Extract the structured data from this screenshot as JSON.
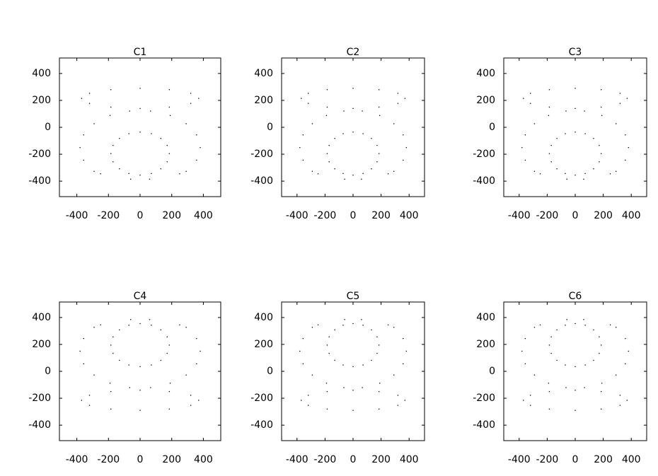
{
  "chart_data": [
    {
      "type": "scatter",
      "title": "C1",
      "color": "#000000",
      "x": [
        370,
        320,
        185,
        0,
        -185,
        -320,
        -370,
        -320,
        -185,
        0,
        185,
        320,
        291,
        357,
        380,
        357,
        291,
        190,
        66,
        -66,
        -190,
        -291,
        -357,
        -380,
        -357,
        -291,
        185,
        171,
        131,
        71,
        0,
        -71,
        -131,
        -171,
        -185,
        -171,
        -131,
        -71,
        0,
        71,
        131,
        171,
        -250,
        250,
        -60,
        60
      ],
      "y": [
        215,
        253,
        280,
        290,
        280,
        253,
        215,
        178,
        150,
        140,
        150,
        178,
        -327,
        -244,
        -150,
        -56,
        27,
        88,
        121,
        121,
        88,
        27,
        -56,
        -150,
        -244,
        -327,
        -195,
        -134,
        -82,
        -47,
        -35,
        -47,
        -82,
        -134,
        -195,
        -256,
        -308,
        -343,
        -355,
        -343,
        -308,
        -256,
        -345,
        -345,
        -385,
        -385
      ],
      "xlim": [
        -510,
        510
      ],
      "ylim": [
        -515,
        515
      ],
      "xticks": [
        -400,
        -200,
        0,
        200,
        400
      ],
      "yticks": [
        -400,
        -200,
        0,
        200,
        400
      ]
    },
    {
      "type": "scatter",
      "title": "C2",
      "color": "#000000",
      "x": [
        370,
        320,
        185,
        0,
        -185,
        -320,
        -370,
        -320,
        -185,
        0,
        185,
        320,
        291,
        357,
        380,
        357,
        291,
        190,
        66,
        -66,
        -190,
        -291,
        -357,
        -380,
        -357,
        -291,
        185,
        171,
        131,
        71,
        0,
        -71,
        -131,
        -171,
        -185,
        -171,
        -131,
        -71,
        0,
        71,
        131,
        171,
        -250,
        250,
        -60,
        60
      ],
      "y": [
        215,
        253,
        280,
        290,
        280,
        253,
        215,
        178,
        150,
        140,
        150,
        178,
        -327,
        -244,
        -150,
        -56,
        27,
        88,
        121,
        121,
        88,
        27,
        -56,
        -150,
        -244,
        -327,
        -195,
        -134,
        -82,
        -47,
        -35,
        -47,
        -82,
        -134,
        -195,
        -256,
        -308,
        -343,
        -355,
        -343,
        -308,
        -256,
        -345,
        -345,
        -385,
        -385
      ],
      "xlim": [
        -510,
        510
      ],
      "ylim": [
        -515,
        515
      ],
      "xticks": [
        -400,
        -200,
        0,
        200,
        400
      ],
      "yticks": [
        -400,
        -200,
        0,
        200,
        400
      ]
    },
    {
      "type": "scatter",
      "title": "C3",
      "color": "#000000",
      "x": [
        370,
        320,
        185,
        0,
        -185,
        -320,
        -370,
        -320,
        -185,
        0,
        185,
        320,
        291,
        357,
        380,
        357,
        291,
        190,
        66,
        -66,
        -190,
        -291,
        -357,
        -380,
        -357,
        -291,
        185,
        171,
        131,
        71,
        0,
        -71,
        -131,
        -171,
        -185,
        -171,
        -131,
        -71,
        0,
        71,
        131,
        171,
        -250,
        250,
        -60,
        60
      ],
      "y": [
        215,
        253,
        280,
        290,
        280,
        253,
        215,
        178,
        150,
        140,
        150,
        178,
        -327,
        -244,
        -150,
        -56,
        27,
        88,
        121,
        121,
        88,
        27,
        -56,
        -150,
        -244,
        -327,
        -195,
        -134,
        -82,
        -47,
        -35,
        -47,
        -82,
        -134,
        -195,
        -256,
        -308,
        -343,
        -355,
        -343,
        -308,
        -256,
        -345,
        -345,
        -385,
        -385
      ],
      "xlim": [
        -510,
        510
      ],
      "ylim": [
        -515,
        515
      ],
      "xticks": [
        -400,
        -200,
        0,
        200,
        400
      ],
      "yticks": [
        -400,
        -200,
        0,
        200,
        400
      ]
    },
    {
      "type": "scatter",
      "title": "C4",
      "color": "#000000",
      "x": [
        370,
        320,
        185,
        0,
        -185,
        -320,
        -370,
        -320,
        -185,
        0,
        185,
        320,
        291,
        357,
        380,
        357,
        291,
        190,
        66,
        -66,
        -190,
        -291,
        -357,
        -380,
        -357,
        -291,
        185,
        171,
        131,
        71,
        0,
        -71,
        -131,
        -171,
        -185,
        -171,
        -131,
        -71,
        0,
        71,
        131,
        171,
        -250,
        250,
        -60,
        60
      ],
      "y": [
        -215,
        -253,
        -280,
        -290,
        -280,
        -253,
        -215,
        -178,
        -150,
        -140,
        -150,
        -178,
        327,
        244,
        150,
        56,
        -27,
        -88,
        -121,
        -121,
        -88,
        -27,
        56,
        150,
        244,
        327,
        195,
        134,
        82,
        47,
        35,
        47,
        82,
        134,
        195,
        256,
        308,
        343,
        355,
        343,
        308,
        256,
        345,
        345,
        385,
        385
      ],
      "xlim": [
        -510,
        510
      ],
      "ylim": [
        -515,
        515
      ],
      "xticks": [
        -400,
        -200,
        0,
        200,
        400
      ],
      "yticks": [
        -400,
        -200,
        0,
        200,
        400
      ]
    },
    {
      "type": "scatter",
      "title": "C5",
      "color": "#000000",
      "x": [
        370,
        320,
        185,
        0,
        -185,
        -320,
        -370,
        -320,
        -185,
        0,
        185,
        320,
        291,
        357,
        380,
        357,
        291,
        190,
        66,
        -66,
        -190,
        -291,
        -357,
        -380,
        -357,
        -291,
        185,
        171,
        131,
        71,
        0,
        -71,
        -131,
        -171,
        -185,
        -171,
        -131,
        -71,
        0,
        71,
        131,
        171,
        -250,
        250,
        -60,
        60
      ],
      "y": [
        -215,
        -253,
        -280,
        -290,
        -280,
        -253,
        -215,
        -178,
        -150,
        -140,
        -150,
        -178,
        327,
        244,
        150,
        56,
        -27,
        -88,
        -121,
        -121,
        -88,
        -27,
        56,
        150,
        244,
        327,
        195,
        134,
        82,
        47,
        35,
        47,
        82,
        134,
        195,
        256,
        308,
        343,
        355,
        343,
        308,
        256,
        345,
        345,
        385,
        385
      ],
      "xlim": [
        -510,
        510
      ],
      "ylim": [
        -515,
        515
      ],
      "xticks": [
        -400,
        -200,
        0,
        200,
        400
      ],
      "yticks": [
        -400,
        -200,
        0,
        200,
        400
      ]
    },
    {
      "type": "scatter",
      "title": "C6",
      "color": "#000000",
      "x": [
        370,
        320,
        185,
        0,
        -185,
        -320,
        -370,
        -320,
        -185,
        0,
        185,
        320,
        291,
        357,
        380,
        357,
        291,
        190,
        66,
        -66,
        -190,
        -291,
        -357,
        -380,
        -357,
        -291,
        185,
        171,
        131,
        71,
        0,
        -71,
        -131,
        -171,
        -185,
        -171,
        -131,
        -71,
        0,
        71,
        131,
        171,
        -250,
        250,
        -60,
        60
      ],
      "y": [
        -215,
        -253,
        -280,
        -290,
        -280,
        -253,
        -215,
        -178,
        -150,
        -140,
        -150,
        -178,
        327,
        244,
        150,
        56,
        -27,
        -88,
        -121,
        -121,
        -88,
        -27,
        56,
        150,
        244,
        327,
        195,
        134,
        82,
        47,
        35,
        47,
        82,
        134,
        195,
        256,
        308,
        343,
        355,
        343,
        308,
        256,
        345,
        345,
        385,
        385
      ],
      "xlim": [
        -510,
        510
      ],
      "ylim": [
        -515,
        515
      ],
      "xticks": [
        -400,
        -200,
        0,
        200,
        400
      ],
      "yticks": [
        -400,
        -200,
        0,
        200,
        400
      ]
    }
  ]
}
